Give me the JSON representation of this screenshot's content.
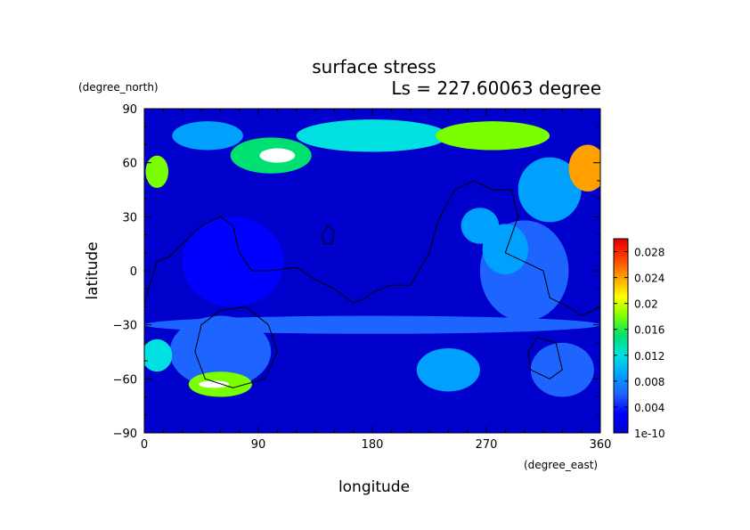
{
  "chart_data": {
    "type": "heatmap",
    "title": "surface stress",
    "subtitle": "Ls = 227.60063 degree",
    "xlabel": "longitude",
    "ylabel": "latitude",
    "x_unit": "(degree_east)",
    "y_unit": "(degree_north)",
    "xlim": [
      0,
      360
    ],
    "ylim": [
      -90,
      90
    ],
    "x_ticks": [
      "0",
      "90",
      "180",
      "270",
      "360"
    ],
    "x_tick_values": [
      0,
      90,
      180,
      270,
      360
    ],
    "y_ticks": [
      "90",
      "60",
      "30",
      "0",
      "−30",
      "−60",
      "−90"
    ],
    "y_tick_values": [
      90,
      60,
      30,
      0,
      -30,
      -60,
      -90
    ],
    "colorbar": {
      "min": 1e-10,
      "max": 0.03,
      "labels": [
        "0.028",
        "0.024",
        "0.02",
        "0.016",
        "0.012",
        "0.008",
        "0.004",
        "1e-10"
      ],
      "label_values": [
        0.028,
        0.024,
        0.02,
        0.016,
        0.012,
        0.008,
        0.004,
        0.0
      ],
      "colormap": [
        "#0000cc",
        "#0000ff",
        "#1e64ff",
        "#00a0ff",
        "#00e0e0",
        "#00e070",
        "#7aff00",
        "#ffff00",
        "#ffa000",
        "#ff4000",
        "#e00000"
      ]
    },
    "background_value": 0.002,
    "regions": [
      {
        "lon": 105,
        "lat": 64,
        "rx": 14,
        "ry": 4,
        "value": 0.032
      },
      {
        "lon": 100,
        "lat": 64,
        "rx": 32,
        "ry": 10,
        "value": 0.014
      },
      {
        "lon": 50,
        "lat": 75,
        "rx": 28,
        "ry": 8,
        "value": 0.01
      },
      {
        "lon": 180,
        "lat": 75,
        "rx": 60,
        "ry": 9,
        "value": 0.011
      },
      {
        "lon": 275,
        "lat": 75,
        "rx": 45,
        "ry": 8,
        "value": 0.018
      },
      {
        "lon": 350,
        "lat": 57,
        "rx": 15,
        "ry": 13,
        "value": 0.022
      },
      {
        "lon": 10,
        "lat": 55,
        "rx": 9,
        "ry": 9,
        "value": 0.017
      },
      {
        "lon": 320,
        "lat": 45,
        "rx": 25,
        "ry": 18,
        "value": 0.009
      },
      {
        "lon": 300,
        "lat": 0,
        "rx": 35,
        "ry": 28,
        "value": 0.007
      },
      {
        "lon": 265,
        "lat": 25,
        "rx": 15,
        "ry": 10,
        "value": 0.009
      },
      {
        "lon": 285,
        "lat": 12,
        "rx": 18,
        "ry": 14,
        "value": 0.01
      },
      {
        "lon": 60,
        "lat": -63,
        "rx": 25,
        "ry": 7,
        "value": 0.018
      },
      {
        "lon": 55,
        "lat": -63,
        "rx": 12,
        "ry": 2,
        "value": 0.032
      },
      {
        "lon": 60,
        "lat": -45,
        "rx": 40,
        "ry": 20,
        "value": 0.006
      },
      {
        "lon": 10,
        "lat": -47,
        "rx": 12,
        "ry": 9,
        "value": 0.011
      },
      {
        "lon": 240,
        "lat": -55,
        "rx": 25,
        "ry": 12,
        "value": 0.009
      },
      {
        "lon": 330,
        "lat": -55,
        "rx": 25,
        "ry": 15,
        "value": 0.008
      },
      {
        "lon": 70,
        "lat": 5,
        "rx": 40,
        "ry": 25,
        "value": 0.005
      },
      {
        "lon": 180,
        "lat": -30,
        "rx": 180,
        "ry": 5,
        "value": 0.006
      }
    ],
    "contours": [
      [
        [
          0,
          -18
        ],
        [
          10,
          5
        ],
        [
          20,
          8
        ],
        [
          30,
          15
        ],
        [
          45,
          25
        ],
        [
          60,
          30
        ],
        [
          70,
          25
        ],
        [
          75,
          10
        ],
        [
          85,
          0
        ],
        [
          100,
          0
        ],
        [
          120,
          2
        ],
        [
          135,
          -5
        ],
        [
          150,
          -10
        ],
        [
          165,
          -18
        ],
        [
          175,
          -15
        ],
        [
          180,
          -12
        ],
        [
          195,
          -8
        ],
        [
          210,
          -8
        ],
        [
          225,
          10
        ],
        [
          232,
          28
        ],
        [
          245,
          45
        ],
        [
          260,
          50
        ],
        [
          275,
          45
        ],
        [
          290,
          45
        ],
        [
          295,
          30
        ],
        [
          285,
          10
        ],
        [
          300,
          5
        ],
        [
          315,
          0
        ],
        [
          320,
          -15
        ],
        [
          335,
          -20
        ],
        [
          345,
          -25
        ],
        [
          360,
          -20
        ]
      ],
      [
        [
          140,
          20
        ],
        [
          145,
          25
        ],
        [
          150,
          22
        ],
        [
          148,
          15
        ],
        [
          142,
          15
        ],
        [
          140,
          20
        ]
      ],
      [
        [
          80,
          -20
        ],
        [
          98,
          -30
        ],
        [
          105,
          -45
        ],
        [
          95,
          -60
        ],
        [
          70,
          -65
        ],
        [
          48,
          -60
        ],
        [
          40,
          -45
        ],
        [
          45,
          -30
        ],
        [
          60,
          -22
        ],
        [
          80,
          -20
        ]
      ],
      [
        [
          310,
          -37
        ],
        [
          325,
          -40
        ],
        [
          330,
          -55
        ],
        [
          320,
          -60
        ],
        [
          305,
          -55
        ],
        [
          303,
          -45
        ],
        [
          310,
          -37
        ]
      ]
    ]
  }
}
